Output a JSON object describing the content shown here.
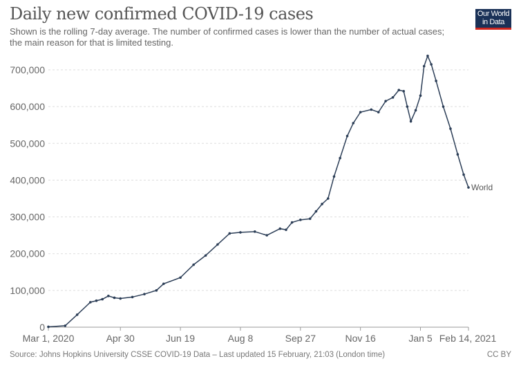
{
  "header": {
    "title": "Daily new confirmed COVID-19 cases",
    "subtitle": "Shown is the rolling 7-day average. The number of confirmed cases is lower than the number of actual cases; the main reason for that is limited testing.",
    "logo": "Our World in Data"
  },
  "footer": {
    "source": "Source: Johns Hopkins University CSSE COVID-19 Data – Last updated 15 February, 21:03 (London time)",
    "license": "CC BY"
  },
  "colors": {
    "line": "#2c3e57",
    "grid": "#dddddd",
    "logo_bg": "#1a3157",
    "logo_accent": "#ce261e"
  },
  "chart_data": {
    "type": "line",
    "title": "Daily new confirmed COVID-19 cases",
    "grid": "horizontal dashed",
    "xlim": [
      "2020-03-01",
      "2021-02-14"
    ],
    "ylim": [
      0,
      700000
    ],
    "x_ticks": [
      {
        "date": "2020-03-01",
        "label": "Mar 1, 2020"
      },
      {
        "date": "2020-04-30",
        "label": "Apr 30"
      },
      {
        "date": "2020-06-19",
        "label": "Jun 19"
      },
      {
        "date": "2020-08-08",
        "label": "Aug 8"
      },
      {
        "date": "2020-09-27",
        "label": "Sep 27"
      },
      {
        "date": "2020-11-16",
        "label": "Nov 16"
      },
      {
        "date": "2021-01-05",
        "label": "Jan 5"
      },
      {
        "date": "2021-02-14",
        "label": "Feb 14, 2021"
      }
    ],
    "y_ticks": [
      {
        "value": 0,
        "label": "0"
      },
      {
        "value": 100000,
        "label": "100,000"
      },
      {
        "value": 200000,
        "label": "200,000"
      },
      {
        "value": 300000,
        "label": "300,000"
      },
      {
        "value": 400000,
        "label": "400,000"
      },
      {
        "value": 500000,
        "label": "500,000"
      },
      {
        "value": 600000,
        "label": "600,000"
      },
      {
        "value": 700000,
        "label": "700,000"
      }
    ],
    "series": [
      {
        "name": "World",
        "points": [
          [
            "2020-03-01",
            1000
          ],
          [
            "2020-03-15",
            4000
          ],
          [
            "2020-03-25",
            34000
          ],
          [
            "2020-04-05",
            68000
          ],
          [
            "2020-04-10",
            72000
          ],
          [
            "2020-04-15",
            76000
          ],
          [
            "2020-04-20",
            85000
          ],
          [
            "2020-04-25",
            80000
          ],
          [
            "2020-04-30",
            78000
          ],
          [
            "2020-05-10",
            82000
          ],
          [
            "2020-05-20",
            90000
          ],
          [
            "2020-05-30",
            100000
          ],
          [
            "2020-06-05",
            118000
          ],
          [
            "2020-06-19",
            135000
          ],
          [
            "2020-06-30",
            170000
          ],
          [
            "2020-07-10",
            195000
          ],
          [
            "2020-07-20",
            225000
          ],
          [
            "2020-07-30",
            255000
          ],
          [
            "2020-08-08",
            258000
          ],
          [
            "2020-08-20",
            260000
          ],
          [
            "2020-08-30",
            250000
          ],
          [
            "2020-09-10",
            268000
          ],
          [
            "2020-09-15",
            265000
          ],
          [
            "2020-09-20",
            285000
          ],
          [
            "2020-09-27",
            292000
          ],
          [
            "2020-10-05",
            295000
          ],
          [
            "2020-10-10",
            315000
          ],
          [
            "2020-10-15",
            335000
          ],
          [
            "2020-10-20",
            350000
          ],
          [
            "2020-10-25",
            410000
          ],
          [
            "2020-10-30",
            460000
          ],
          [
            "2020-11-05",
            520000
          ],
          [
            "2020-11-10",
            555000
          ],
          [
            "2020-11-16",
            585000
          ],
          [
            "2020-11-25",
            592000
          ],
          [
            "2020-12-01",
            585000
          ],
          [
            "2020-12-07",
            615000
          ],
          [
            "2020-12-13",
            625000
          ],
          [
            "2020-12-18",
            645000
          ],
          [
            "2020-12-22",
            642000
          ],
          [
            "2020-12-25",
            600000
          ],
          [
            "2020-12-28",
            560000
          ],
          [
            "2021-01-01",
            590000
          ],
          [
            "2021-01-05",
            630000
          ],
          [
            "2021-01-08",
            710000
          ],
          [
            "2021-01-11",
            738000
          ],
          [
            "2021-01-14",
            715000
          ],
          [
            "2021-01-18",
            670000
          ],
          [
            "2021-01-24",
            600000
          ],
          [
            "2021-01-30",
            540000
          ],
          [
            "2021-02-05",
            470000
          ],
          [
            "2021-02-10",
            415000
          ],
          [
            "2021-02-14",
            380000
          ]
        ]
      }
    ]
  }
}
